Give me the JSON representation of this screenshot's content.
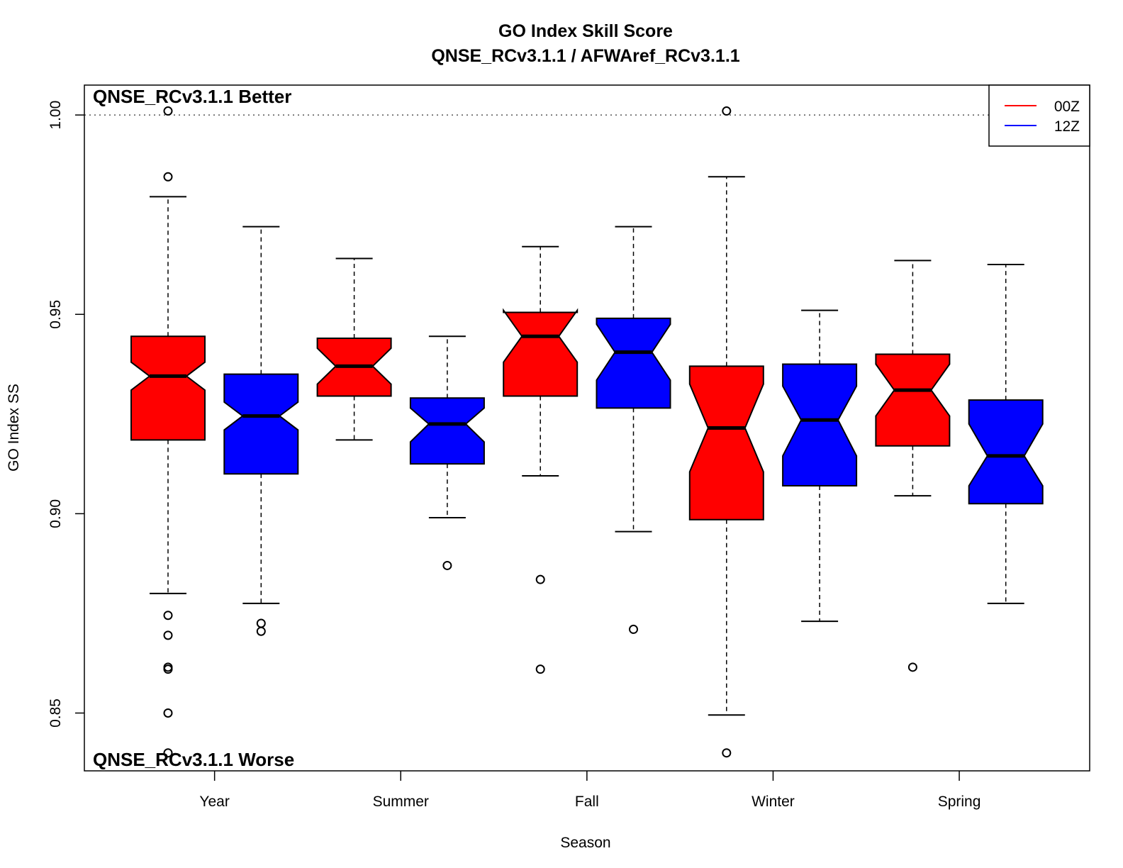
{
  "chart_data": {
    "type": "boxplot",
    "title": "GO Index Skill Score",
    "subtitle": "QNSE_RCv3.1.1 / AFWAref_RCv3.1.1",
    "xlabel": "Season",
    "ylabel": "GO Index SS",
    "ylim": [
      0.8355,
      1.0075
    ],
    "yticks": [
      "0.85",
      "0.90",
      "0.95",
      "1.00"
    ],
    "ytick_values": [
      0.85,
      0.9,
      0.95,
      1.0
    ],
    "reference_line": 1.0,
    "annotation_top": "QNSE_RCv3.1.1 Better",
    "annotation_bottom": "QNSE_RCv3.1.1 Worse",
    "legend_position": "top-right",
    "categories": [
      "Year",
      "Summer",
      "Fall",
      "Winter",
      "Spring"
    ],
    "series": [
      {
        "name": "00Z",
        "color": "#ff0000",
        "legend_label": "00Z",
        "boxes": [
          {
            "category": "Year",
            "min": 0.88,
            "q1": 0.9185,
            "median": 0.9345,
            "q3": 0.9445,
            "max": 0.9795,
            "notch_low": 0.931,
            "notch_high": 0.938,
            "outliers": [
              1.001,
              0.9845,
              0.8745,
              0.8695,
              0.8615,
              0.861,
              0.85,
              0.84
            ]
          },
          {
            "category": "Summer",
            "min": 0.9185,
            "q1": 0.9295,
            "median": 0.937,
            "q3": 0.944,
            "max": 0.964,
            "notch_low": 0.9325,
            "notch_high": 0.9415,
            "outliers": []
          },
          {
            "category": "Fall",
            "min": 0.9095,
            "q1": 0.9295,
            "median": 0.9445,
            "q3": 0.9505,
            "max": 0.967,
            "notch_low": 0.938,
            "notch_high": 0.951,
            "outliers": [
              0.8835,
              0.861
            ]
          },
          {
            "category": "Winter",
            "min": 0.8495,
            "q1": 0.8985,
            "median": 0.9215,
            "q3": 0.937,
            "max": 0.9845,
            "notch_low": 0.9105,
            "notch_high": 0.9325,
            "outliers": [
              1.001,
              0.84
            ]
          },
          {
            "category": "Spring",
            "min": 0.9045,
            "q1": 0.917,
            "median": 0.931,
            "q3": 0.94,
            "max": 0.9635,
            "notch_low": 0.9245,
            "notch_high": 0.9375,
            "outliers": [
              0.8615
            ]
          }
        ]
      },
      {
        "name": "12Z",
        "color": "#0000ff",
        "legend_label": "12Z",
        "boxes": [
          {
            "category": "Year",
            "min": 0.8775,
            "q1": 0.91,
            "median": 0.9245,
            "q3": 0.935,
            "max": 0.972,
            "notch_low": 0.921,
            "notch_high": 0.928,
            "outliers": [
              0.8725,
              0.8705
            ]
          },
          {
            "category": "Summer",
            "min": 0.899,
            "q1": 0.9125,
            "median": 0.9225,
            "q3": 0.929,
            "max": 0.9445,
            "notch_low": 0.918,
            "notch_high": 0.9265,
            "outliers": [
              0.887
            ]
          },
          {
            "category": "Fall",
            "min": 0.8955,
            "q1": 0.9265,
            "median": 0.9405,
            "q3": 0.949,
            "max": 0.972,
            "notch_low": 0.9335,
            "notch_high": 0.9475,
            "outliers": [
              0.871
            ]
          },
          {
            "category": "Winter",
            "min": 0.873,
            "q1": 0.907,
            "median": 0.9235,
            "q3": 0.9375,
            "max": 0.951,
            "notch_low": 0.9145,
            "notch_high": 0.932,
            "outliers": []
          },
          {
            "category": "Spring",
            "min": 0.8775,
            "q1": 0.9025,
            "median": 0.9145,
            "q3": 0.9285,
            "max": 0.9625,
            "notch_low": 0.907,
            "notch_high": 0.9225,
            "outliers": []
          }
        ]
      }
    ]
  }
}
